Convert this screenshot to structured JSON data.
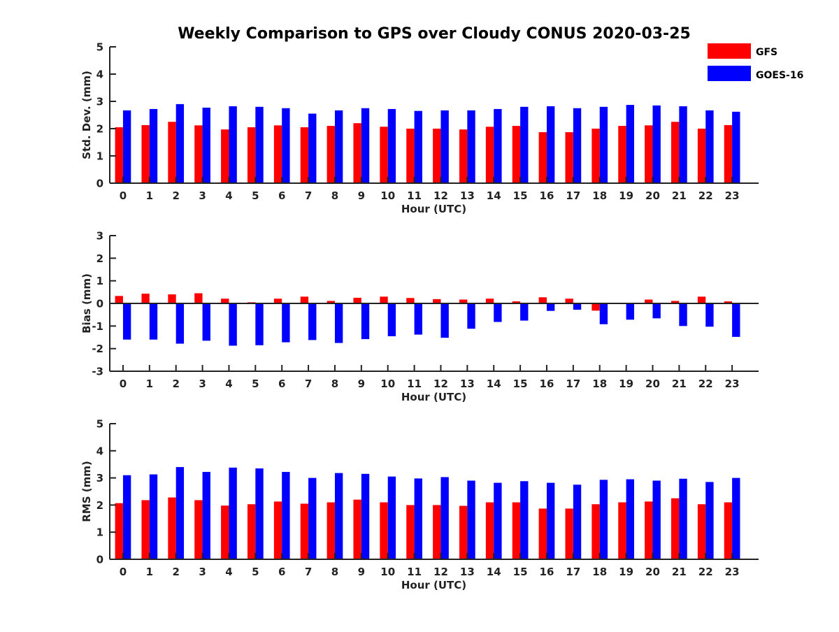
{
  "title": "Weekly Comparison to GPS over Cloudy CONUS 2020-03-25",
  "legend": {
    "placement": "top-right",
    "entries": [
      {
        "name": "GFS",
        "color": "#ff0000"
      },
      {
        "name": "GOES-16",
        "color": "#0000ff"
      }
    ]
  },
  "chart_data": [
    {
      "type": "bar",
      "xlabel": "Hour (UTC)",
      "ylabel": "Std. Dev. (mm)",
      "ylim": [
        0,
        5
      ],
      "yticks": [
        0,
        1,
        2,
        3,
        4,
        5
      ],
      "grid": false,
      "categories": [
        "0",
        "1",
        "2",
        "3",
        "4",
        "5",
        "6",
        "7",
        "8",
        "9",
        "10",
        "11",
        "12",
        "13",
        "14",
        "15",
        "16",
        "17",
        "18",
        "19",
        "20",
        "21",
        "22",
        "23"
      ],
      "series": [
        {
          "name": "GFS",
          "color": "#ff0000",
          "values": [
            2.05,
            2.13,
            2.25,
            2.12,
            1.97,
            2.05,
            2.12,
            2.05,
            2.1,
            2.2,
            2.07,
            2.0,
            2.0,
            1.97,
            2.07,
            2.1,
            1.87,
            1.87,
            2.0,
            2.1,
            2.12,
            2.25,
            2.0,
            2.13
          ]
        },
        {
          "name": "GOES-16",
          "color": "#0000ff",
          "values": [
            2.67,
            2.72,
            2.9,
            2.77,
            2.82,
            2.8,
            2.75,
            2.55,
            2.67,
            2.75,
            2.72,
            2.65,
            2.67,
            2.67,
            2.72,
            2.8,
            2.82,
            2.75,
            2.8,
            2.87,
            2.85,
            2.82,
            2.67,
            2.62
          ]
        }
      ]
    },
    {
      "type": "bar",
      "xlabel": "Hour (UTC)",
      "ylabel": "Bias (mm)",
      "ylim": [
        -3,
        3
      ],
      "yticks": [
        -3,
        -2,
        -1,
        0,
        1,
        2,
        3
      ],
      "grid": false,
      "zero_line": true,
      "categories": [
        "0",
        "1",
        "2",
        "3",
        "4",
        "5",
        "6",
        "7",
        "8",
        "9",
        "10",
        "11",
        "12",
        "13",
        "14",
        "15",
        "16",
        "17",
        "18",
        "19",
        "20",
        "21",
        "22",
        "23"
      ],
      "series": [
        {
          "name": "GFS",
          "color": "#ff0000",
          "values": [
            0.33,
            0.43,
            0.4,
            0.45,
            0.21,
            0.05,
            0.21,
            0.3,
            0.11,
            0.25,
            0.3,
            0.24,
            0.19,
            0.17,
            0.21,
            0.09,
            0.27,
            0.21,
            -0.32,
            -0.02,
            0.17,
            0.11,
            0.3,
            0.09
          ]
        },
        {
          "name": "GOES-16",
          "color": "#0000ff",
          "values": [
            -1.6,
            -1.6,
            -1.78,
            -1.65,
            -1.87,
            -1.85,
            -1.72,
            -1.62,
            -1.75,
            -1.58,
            -1.45,
            -1.38,
            -1.52,
            -1.12,
            -0.82,
            -0.76,
            -0.33,
            -0.28,
            -0.92,
            -0.72,
            -0.66,
            -1.0,
            -1.03,
            -1.48
          ]
        }
      ]
    },
    {
      "type": "bar",
      "xlabel": "Hour (UTC)",
      "ylabel": "RMS (mm)",
      "ylim": [
        0,
        5
      ],
      "yticks": [
        0,
        1,
        2,
        3,
        4,
        5
      ],
      "grid": false,
      "categories": [
        "0",
        "1",
        "2",
        "3",
        "4",
        "5",
        "6",
        "7",
        "8",
        "9",
        "10",
        "11",
        "12",
        "13",
        "14",
        "15",
        "16",
        "17",
        "18",
        "19",
        "20",
        "21",
        "22",
        "23"
      ],
      "series": [
        {
          "name": "GFS",
          "color": "#ff0000",
          "values": [
            2.07,
            2.18,
            2.28,
            2.18,
            1.98,
            2.03,
            2.13,
            2.05,
            2.1,
            2.2,
            2.1,
            2.0,
            2.0,
            1.97,
            2.1,
            2.1,
            1.87,
            1.87,
            2.03,
            2.1,
            2.13,
            2.25,
            2.03,
            2.1
          ]
        },
        {
          "name": "GOES-16",
          "color": "#0000ff",
          "values": [
            3.1,
            3.13,
            3.4,
            3.22,
            3.38,
            3.35,
            3.22,
            3.0,
            3.18,
            3.15,
            3.05,
            2.98,
            3.03,
            2.9,
            2.82,
            2.88,
            2.82,
            2.75,
            2.93,
            2.95,
            2.9,
            2.97,
            2.85,
            3.0
          ]
        }
      ]
    }
  ]
}
